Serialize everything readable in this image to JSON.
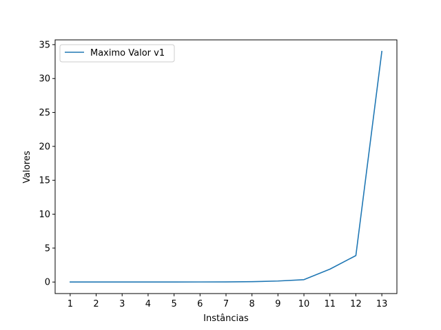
{
  "chart_data": {
    "type": "line",
    "title": "",
    "xlabel": "Instâncias",
    "ylabel": "Valores",
    "x": [
      1,
      2,
      3,
      4,
      5,
      6,
      7,
      8,
      9,
      10,
      11,
      12,
      13
    ],
    "series": [
      {
        "name": "Maximo Valor v1",
        "color": "#1f77b4",
        "values": [
          0.0,
          0.0,
          0.0,
          0.0,
          0.0,
          0.01,
          0.02,
          0.05,
          0.15,
          0.35,
          1.9,
          3.9,
          34.0
        ]
      }
    ],
    "xticks": [
      "1",
      "2",
      "3",
      "4",
      "5",
      "6",
      "7",
      "8",
      "9",
      "10",
      "11",
      "12",
      "13"
    ],
    "yticks": [
      0,
      5,
      10,
      15,
      20,
      25,
      30,
      35
    ],
    "xlim": [
      0.42,
      13.58
    ],
    "ylim": [
      -1.7,
      35.7
    ],
    "grid": false,
    "legend_position": "top-left"
  }
}
